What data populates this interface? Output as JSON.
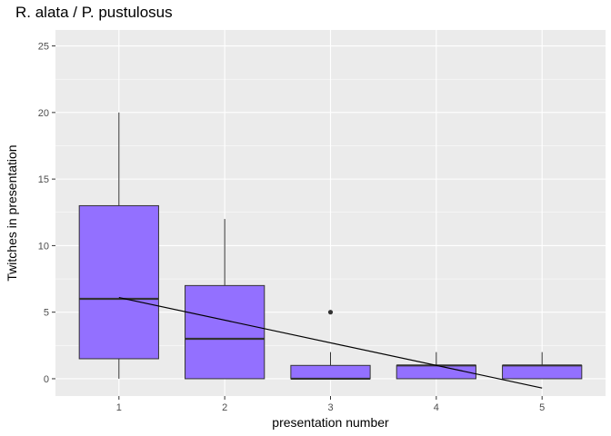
{
  "chart_data": {
    "type": "boxplot",
    "title": "R. alata / P. pustulosus",
    "xlabel": "presentation number",
    "ylabel": "Twitches in presentation",
    "categories": [
      "1",
      "2",
      "3",
      "4",
      "5"
    ],
    "ylim": [
      -1.3,
      26.2
    ],
    "yticks": [
      0,
      5,
      10,
      15,
      20,
      25
    ],
    "grid": true,
    "legend": "none",
    "boxes": [
      {
        "x": "1",
        "min": 0,
        "q1": 1.5,
        "median": 6,
        "q3": 13,
        "max": 20,
        "outliers": []
      },
      {
        "x": "2",
        "min": 0,
        "q1": 0,
        "median": 3,
        "q3": 7,
        "max": 12,
        "outliers": []
      },
      {
        "x": "3",
        "min": 0,
        "q1": 0,
        "median": 0,
        "q3": 1,
        "max": 2,
        "outliers": [
          5
        ]
      },
      {
        "x": "4",
        "min": 0,
        "q1": 0,
        "median": 1,
        "q3": 1,
        "max": 2,
        "outliers": []
      },
      {
        "x": "5",
        "min": 0,
        "q1": 0,
        "median": 1,
        "q3": 1,
        "max": 2,
        "outliers": []
      }
    ],
    "trend_line": {
      "x": [
        1,
        5
      ],
      "y": [
        6.1,
        -0.7
      ]
    },
    "colors": {
      "box_fill": "#9370ff",
      "box_stroke": "#333333",
      "panel_bg": "#ebebeb",
      "grid": "#ffffff",
      "trend": "#000000"
    }
  }
}
